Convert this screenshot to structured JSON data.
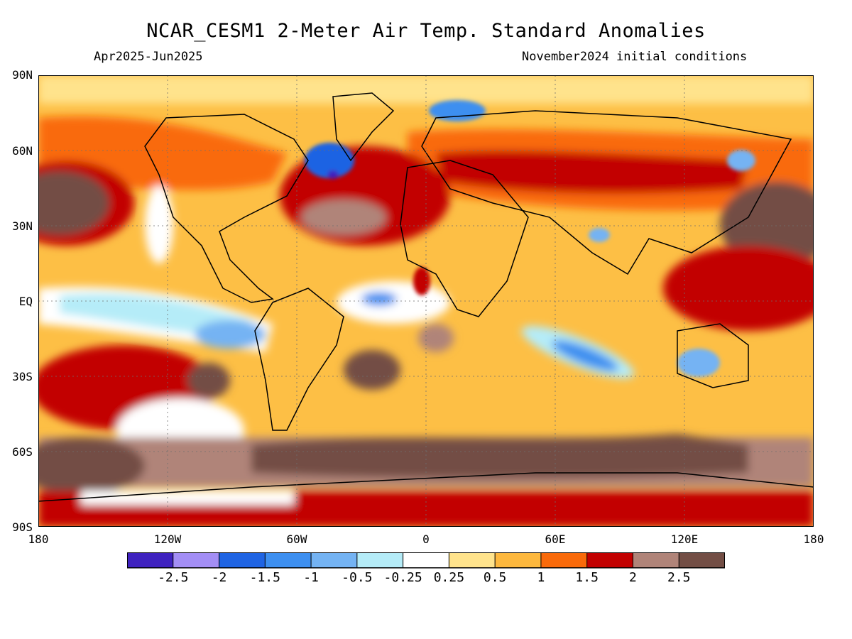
{
  "title": "NCAR_CESM1 2-Meter Air Temp. Standard Anomalies",
  "period": "Apr2025-Jun2025",
  "init": "November2024 initial conditions",
  "lat_labels": [
    "90N",
    "60N",
    "30N",
    "EQ",
    "30S",
    "60S",
    "90S"
  ],
  "lon_labels": [
    "180",
    "120W",
    "60W",
    "0",
    "60E",
    "120E",
    "180"
  ],
  "colorbar": {
    "colors": [
      "#3f22bf",
      "#a38ef5",
      "#1f64e3",
      "#3d8ff0",
      "#74b3f3",
      "#b5ecf8",
      "#ffffff",
      "#ffe38c",
      "#fdb83e",
      "#f96a0a",
      "#c20000",
      "#b08479",
      "#734e45"
    ],
    "labels": [
      "-2.5",
      "-2",
      "-1.5",
      "-1",
      "-0.5",
      "-0.25",
      "0.25",
      "0.5",
      "1",
      "1.5",
      "2",
      "2.5"
    ]
  },
  "map": {
    "background_color": "#fdbf45"
  }
}
